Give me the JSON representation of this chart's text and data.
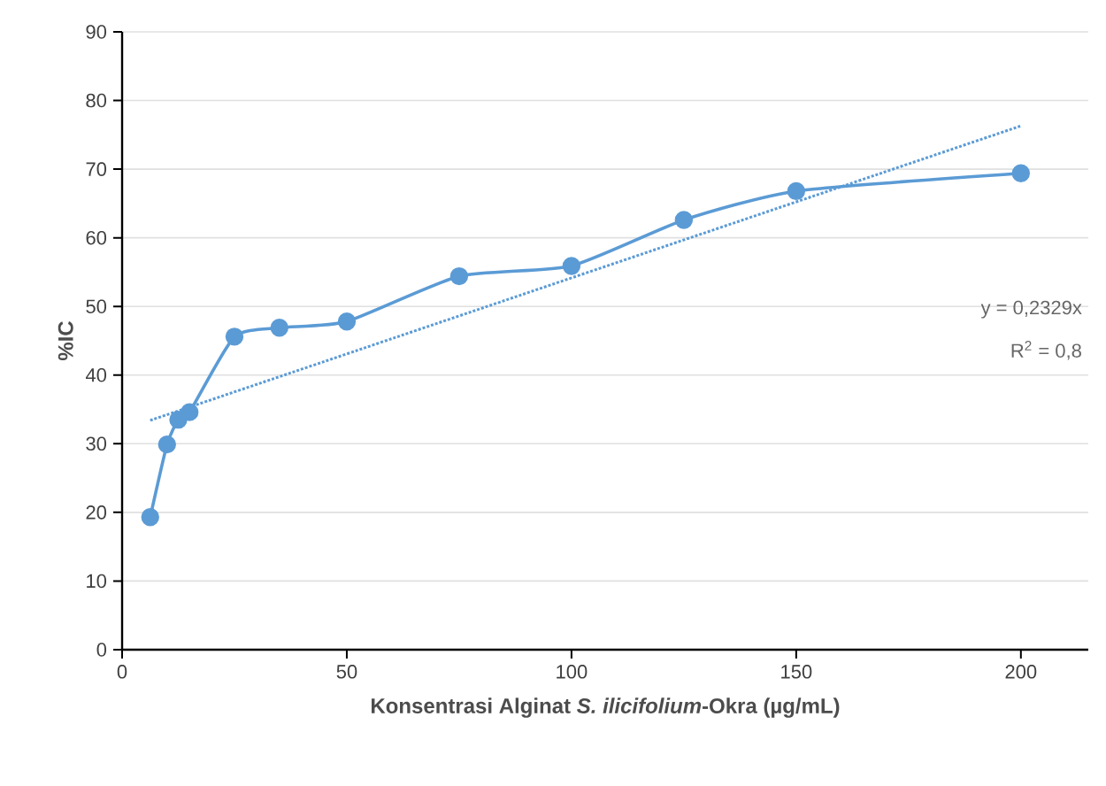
{
  "chart_data": {
    "type": "line",
    "xlabel": "Konsentrasi Alginat *S. ilicifolium*-Okra (µg/mL)",
    "ylabel": "%IC",
    "x": [
      6.25,
      10,
      12.5,
      15,
      25,
      35,
      50,
      75,
      100,
      125,
      150,
      200
    ],
    "series": [
      {
        "color": "#5b9bd5",
        "marker": "circle",
        "line_style": "solid",
        "values": [
          19.3,
          29.9,
          33.5,
          34.6,
          45.6,
          46.9,
          47.8,
          54.4,
          55.9,
          62.6,
          66.8,
          69.4
        ]
      },
      {
        "color": "#5b9bd5",
        "marker": "none",
        "line_style": "dotted",
        "x": [
          6.25,
          200
        ],
        "values": [
          33.4,
          76.3
        ]
      }
    ],
    "xlim": [
      0,
      215
    ],
    "xticks": [
      0,
      50,
      100,
      150,
      200
    ],
    "ylim": [
      0,
      90
    ],
    "yticks": [
      0,
      10,
      20,
      30,
      40,
      50,
      60,
      70,
      80,
      90
    ],
    "grid": "y",
    "annotations": [
      "y = 0,2329x",
      "R$^{2}$ = 0,8"
    ]
  }
}
